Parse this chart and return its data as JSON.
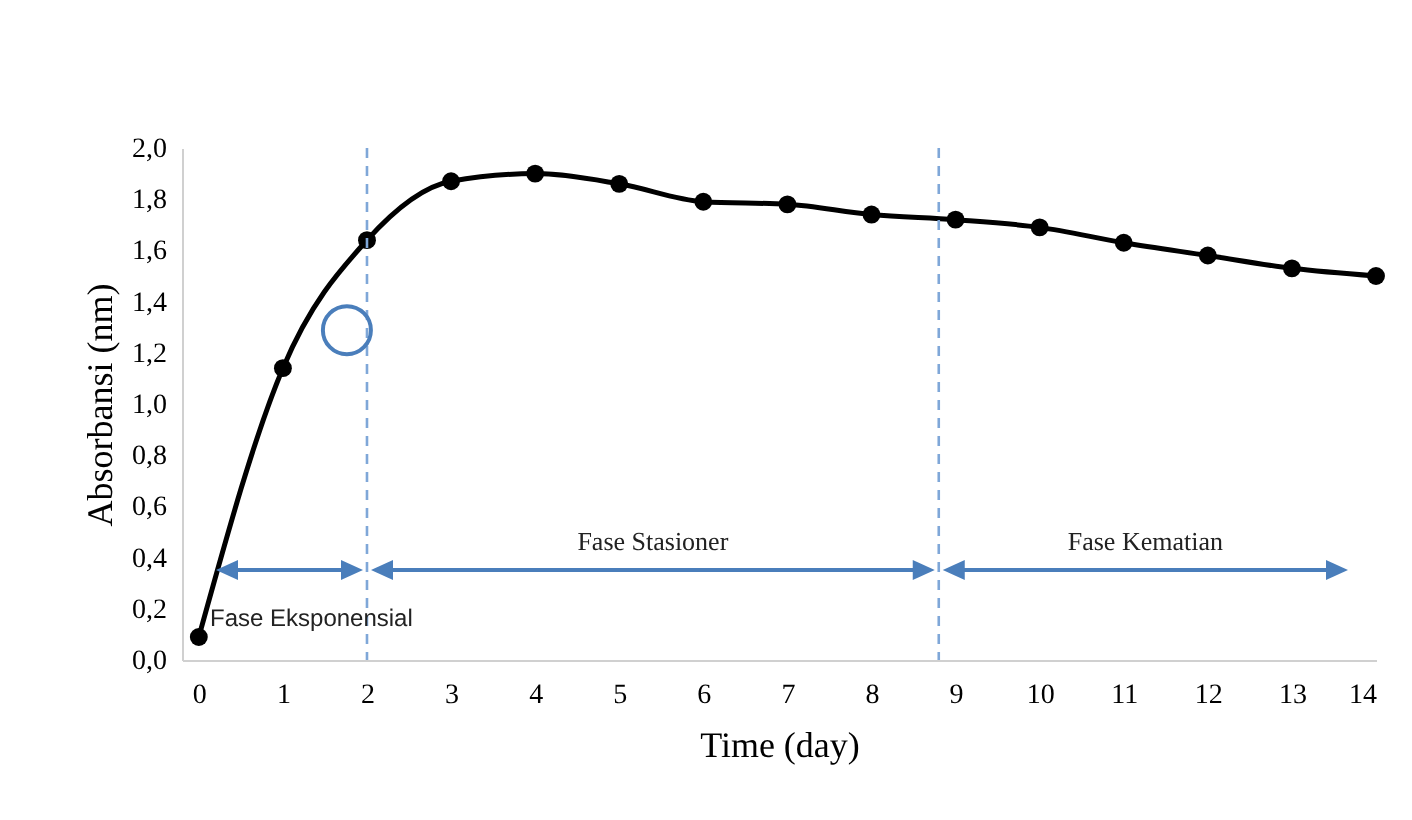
{
  "chart_data": {
    "type": "line",
    "xlabel": "Time (day)",
    "ylabel": "Absorbansi (nm)",
    "x": [
      0,
      1,
      2,
      3,
      4,
      5,
      6,
      7,
      8,
      9,
      10,
      11,
      12,
      13,
      14
    ],
    "series": [
      {
        "color": "#000000",
        "values": [
          0.09,
          1.14,
          1.64,
          1.87,
          1.9,
          1.86,
          1.79,
          1.78,
          1.74,
          1.72,
          1.69,
          1.63,
          1.58,
          1.53,
          1.5
        ]
      }
    ],
    "xlim": [
      -0.2,
      14
    ],
    "xticks": [
      0,
      1,
      2,
      3,
      4,
      5,
      6,
      7,
      8,
      9,
      10,
      11,
      12,
      13,
      14
    ],
    "ylim": [
      0,
      2
    ],
    "yticks": [
      {
        "value": 0,
        "label": "0,0"
      },
      {
        "value": 0.2,
        "label": "0,2"
      },
      {
        "value": 0.4,
        "label": "0,4"
      },
      {
        "value": 0.6,
        "label": "0,6"
      },
      {
        "value": 0.8,
        "label": "0,8"
      },
      {
        "value": 1,
        "label": "1,0"
      },
      {
        "value": 1.2,
        "label": "1,2"
      },
      {
        "value": 1.4,
        "label": "1,4"
      },
      {
        "value": 1.6,
        "label": "1,6"
      },
      {
        "value": 1.8,
        "label": "1,8"
      },
      {
        "value": 2,
        "label": "2,0"
      }
    ],
    "ref_lines": [
      {
        "axis": "x",
        "value": 2,
        "color": "#7fa7d8",
        "line_style": "dashed"
      },
      {
        "axis": "x",
        "value": 8.8,
        "color": "#7fa7d8",
        "line_style": "dashed"
      }
    ],
    "annotations": [
      "Fase Eksponensial",
      "Fase Stasioner",
      "Fase Kematian"
    ],
    "marker": "circle",
    "line_style": "solid",
    "grid": false
  }
}
